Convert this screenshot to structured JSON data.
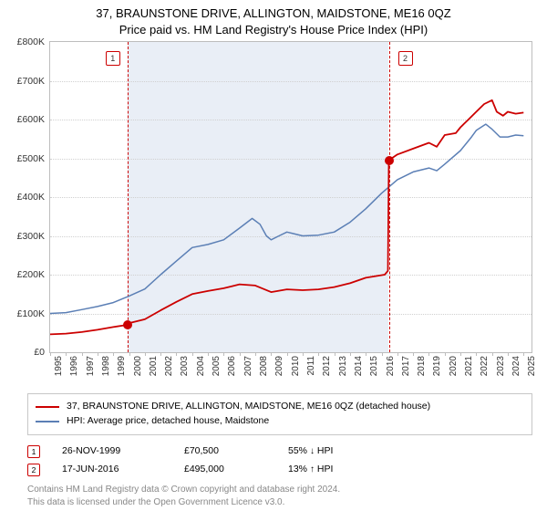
{
  "title": {
    "line1": "37, BRAUNSTONE DRIVE, ALLINGTON, MAIDSTONE, ME16 0QZ",
    "line2": "Price paid vs. HM Land Registry's House Price Index (HPI)"
  },
  "chart": {
    "type": "line",
    "background_color": "#ffffff",
    "shaded_band_color": "#e9eef6",
    "grid_color": "#d0d0d0",
    "border_color": "#bdbdbd",
    "x": {
      "min": 1995,
      "max": 2025.5,
      "ticks": [
        1995,
        1996,
        1997,
        1998,
        1999,
        2000,
        2001,
        2002,
        2003,
        2004,
        2005,
        2006,
        2007,
        2008,
        2009,
        2010,
        2011,
        2012,
        2013,
        2014,
        2015,
        2016,
        2017,
        2018,
        2019,
        2020,
        2021,
        2022,
        2023,
        2024,
        2025
      ]
    },
    "y": {
      "min": 0,
      "max": 800000,
      "ticks": [
        0,
        100000,
        200000,
        300000,
        400000,
        500000,
        600000,
        700000,
        800000
      ],
      "tick_labels": [
        "£0",
        "£100K",
        "£200K",
        "£300K",
        "£400K",
        "£500K",
        "£600K",
        "£700K",
        "£800K"
      ]
    },
    "shade": {
      "from": 1999.9,
      "to": 2016.46
    },
    "events": [
      {
        "id": "1",
        "year": 1999.9,
        "price": 70500
      },
      {
        "id": "2",
        "year": 2016.46,
        "price": 495000
      }
    ],
    "series": {
      "paid": {
        "color": "#cc0000",
        "width": 1.8,
        "points": [
          [
            1995,
            46000
          ],
          [
            1996,
            48000
          ],
          [
            1997,
            52000
          ],
          [
            1998,
            58000
          ],
          [
            1999,
            65000
          ],
          [
            1999.9,
            70500
          ],
          [
            2000,
            75000
          ],
          [
            2001,
            85000
          ],
          [
            2002,
            108000
          ],
          [
            2003,
            130000
          ],
          [
            2004,
            150000
          ],
          [
            2005,
            158000
          ],
          [
            2006,
            165000
          ],
          [
            2007,
            175000
          ],
          [
            2008,
            172000
          ],
          [
            2009,
            155000
          ],
          [
            2010,
            162000
          ],
          [
            2011,
            160000
          ],
          [
            2012,
            162000
          ],
          [
            2013,
            168000
          ],
          [
            2014,
            178000
          ],
          [
            2015,
            192000
          ],
          [
            2016.2,
            200000
          ],
          [
            2016.4,
            210000
          ],
          [
            2016.46,
            495000
          ],
          [
            2017,
            510000
          ],
          [
            2018,
            525000
          ],
          [
            2019,
            540000
          ],
          [
            2019.5,
            530000
          ],
          [
            2020,
            560000
          ],
          [
            2020.7,
            565000
          ],
          [
            2021,
            580000
          ],
          [
            2021.5,
            600000
          ],
          [
            2022,
            620000
          ],
          [
            2022.5,
            640000
          ],
          [
            2023,
            650000
          ],
          [
            2023.3,
            620000
          ],
          [
            2023.7,
            610000
          ],
          [
            2024,
            620000
          ],
          [
            2024.5,
            615000
          ],
          [
            2025,
            618000
          ]
        ]
      },
      "hpi": {
        "color": "#5b7fb5",
        "width": 1.5,
        "points": [
          [
            1995,
            100000
          ],
          [
            1996,
            102000
          ],
          [
            1997,
            110000
          ],
          [
            1998,
            118000
          ],
          [
            1999,
            128000
          ],
          [
            2000,
            145000
          ],
          [
            2001,
            163000
          ],
          [
            2002,
            200000
          ],
          [
            2003,
            235000
          ],
          [
            2004,
            270000
          ],
          [
            2005,
            278000
          ],
          [
            2006,
            290000
          ],
          [
            2007,
            320000
          ],
          [
            2007.8,
            345000
          ],
          [
            2008.3,
            330000
          ],
          [
            2008.7,
            300000
          ],
          [
            2009,
            290000
          ],
          [
            2009.5,
            300000
          ],
          [
            2010,
            310000
          ],
          [
            2010.5,
            305000
          ],
          [
            2011,
            300000
          ],
          [
            2012,
            302000
          ],
          [
            2013,
            310000
          ],
          [
            2014,
            335000
          ],
          [
            2015,
            370000
          ],
          [
            2016,
            410000
          ],
          [
            2017,
            445000
          ],
          [
            2018,
            465000
          ],
          [
            2019,
            475000
          ],
          [
            2019.5,
            468000
          ],
          [
            2020,
            485000
          ],
          [
            2021,
            520000
          ],
          [
            2021.7,
            555000
          ],
          [
            2022,
            572000
          ],
          [
            2022.6,
            588000
          ],
          [
            2023,
            575000
          ],
          [
            2023.5,
            555000
          ],
          [
            2024,
            555000
          ],
          [
            2024.5,
            560000
          ],
          [
            2025,
            558000
          ]
        ]
      }
    }
  },
  "legend": {
    "paid": "37, BRAUNSTONE DRIVE, ALLINGTON, MAIDSTONE, ME16 0QZ (detached house)",
    "hpi": "HPI: Average price, detached house, Maidstone"
  },
  "sales": [
    {
      "id": "1",
      "date": "26-NOV-1999",
      "price": "£70,500",
      "pct": "55%",
      "dir": "↓",
      "dir_label": "HPI"
    },
    {
      "id": "2",
      "date": "17-JUN-2016",
      "price": "£495,000",
      "pct": "13%",
      "dir": "↑",
      "dir_label": "HPI"
    }
  ],
  "copyright": {
    "l1": "Contains HM Land Registry data © Crown copyright and database right 2024.",
    "l2": "This data is licensed under the Open Government Licence v3.0."
  }
}
